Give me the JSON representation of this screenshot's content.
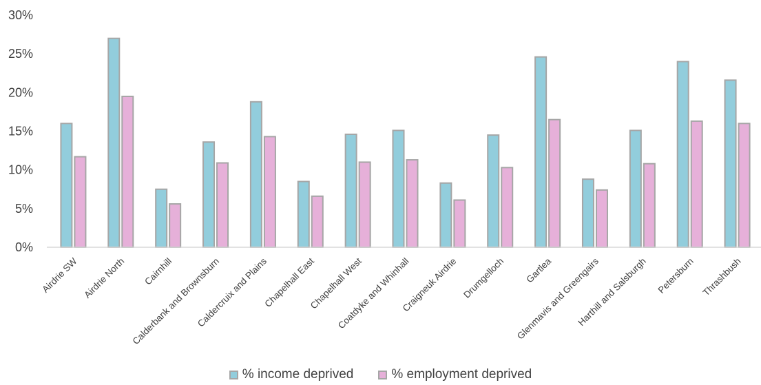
{
  "chart_data": {
    "type": "bar",
    "categories": [
      "Airdrie SW",
      "Airdrie North",
      "Cairnhill",
      "Calderbank and Brownsburn",
      "Caldercruix and Plains",
      "Chapelhall East",
      "Chapelhall West",
      "Coatdyke and Whinhall",
      "Craigneuk Airdrie",
      "Drumgelloch",
      "Gartlea",
      "Glenmavis and Greengairs",
      "Harthill and Salsburgh",
      "Petersburn",
      "Thrashbush"
    ],
    "series": [
      {
        "name": "% income deprived",
        "color": "#92cddc",
        "values": [
          16.0,
          27.0,
          7.5,
          13.6,
          18.8,
          8.5,
          14.6,
          15.1,
          8.3,
          14.5,
          24.6,
          8.8,
          15.1,
          24.0,
          21.6
        ]
      },
      {
        "name": "% employment deprived",
        "color": "#e6b0d9",
        "values": [
          11.7,
          19.5,
          5.6,
          10.9,
          14.3,
          6.6,
          11.0,
          11.3,
          6.1,
          10.3,
          16.5,
          7.4,
          10.8,
          16.3,
          16.0
        ]
      }
    ],
    "yticks": [
      "0%",
      "5%",
      "10%",
      "15%",
      "20%",
      "25%",
      "30%"
    ],
    "ylim": [
      0,
      30
    ],
    "grid": false,
    "legend_position": "bottom",
    "bar_outline_color": "#a6a6a6",
    "axis_color": "#d9d9d9"
  }
}
